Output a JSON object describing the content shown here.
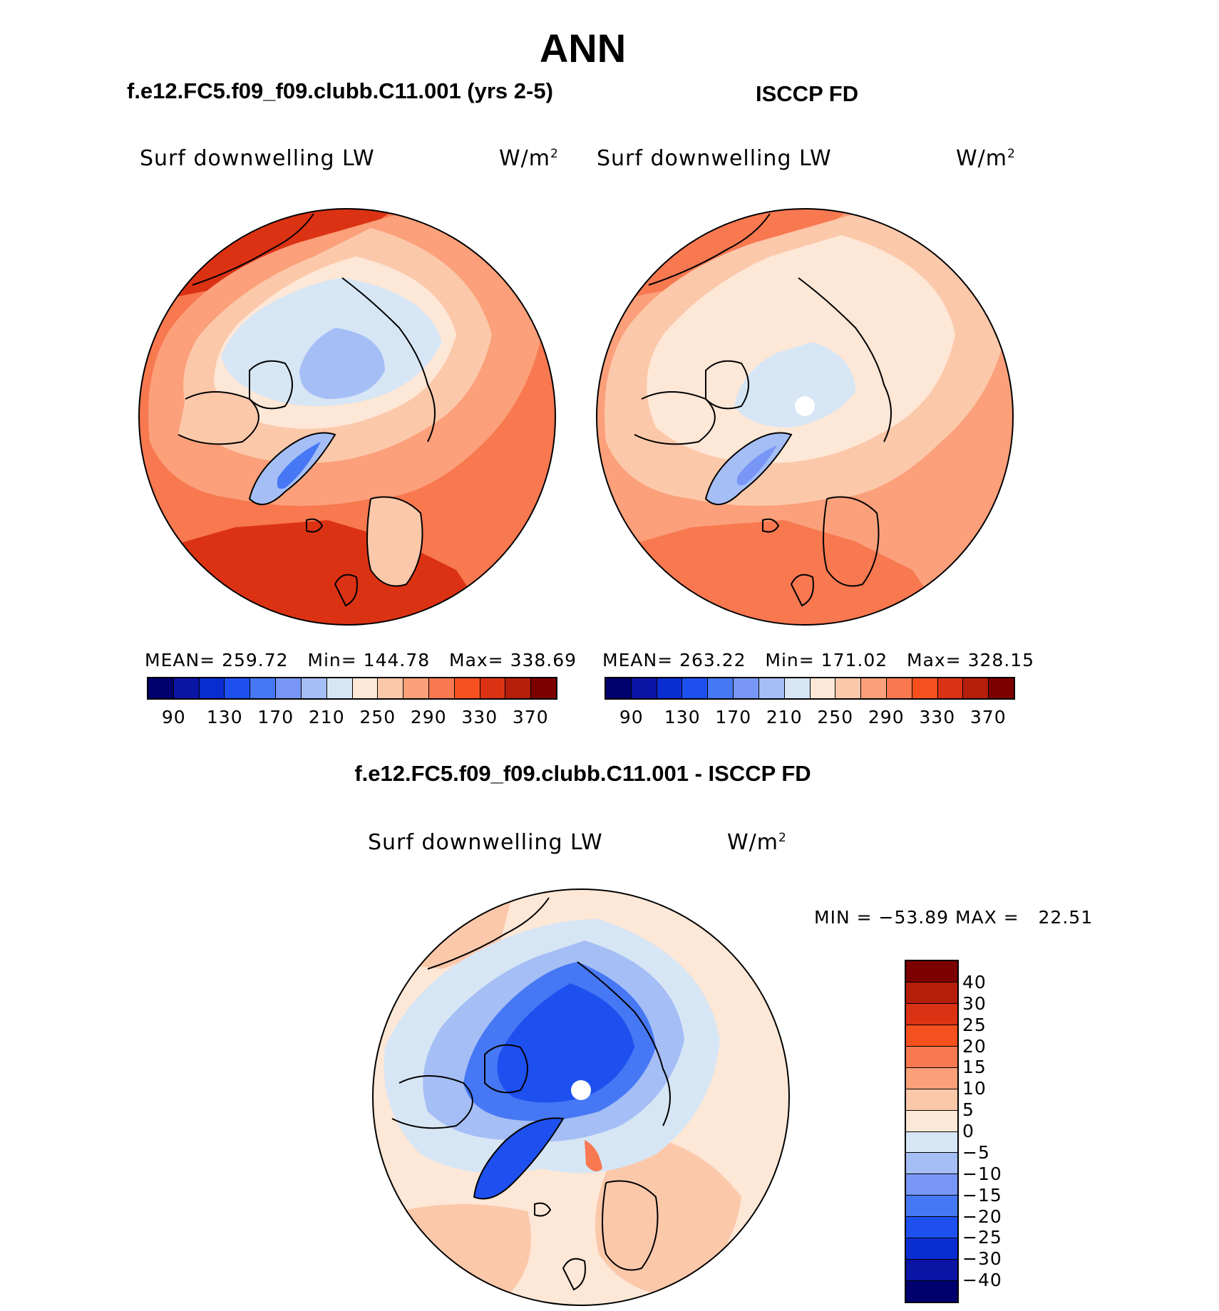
{
  "title": "ANN",
  "left_panel": {
    "case": "f.e12.FC5.f09_f09.clubb.C11.001 (yrs 2-5)",
    "variable": "Surf downwelling LW",
    "units": "W/m",
    "units_sup": "2",
    "mean_label": "MEAN=",
    "mean": "259.72",
    "min_label": "Min=",
    "min": "144.78",
    "max_label": "Max=",
    "max": "338.69"
  },
  "right_panel": {
    "case": "ISCCP FD",
    "variable": "Surf downwelling LW",
    "units": "W/m",
    "units_sup": "2",
    "mean_label": "MEAN=",
    "mean": "263.22",
    "min_label": "Min=",
    "min": "171.02",
    "max_label": "Max=",
    "max": "328.15"
  },
  "abs_colorbar": {
    "labels": [
      "90",
      "130",
      "170",
      "210",
      "250",
      "290",
      "330",
      "370"
    ],
    "colors": [
      "#00006e",
      "#0a14a5",
      "#0a2dd2",
      "#1e50f0",
      "#4678f5",
      "#7896f5",
      "#a5bef5",
      "#d7e6f5",
      "#fde7d6",
      "#fcc8aa",
      "#fba07a",
      "#f87850",
      "#f5501e",
      "#dc3214",
      "#b41e0a",
      "#7d0000"
    ]
  },
  "diff_panel": {
    "title": "f.e12.FC5.f09_f09.clubb.C11.001 - ISCCP FD",
    "variable": "Surf downwelling LW",
    "units": "W/m",
    "units_sup": "2",
    "min_label": "MIN =",
    "min": "−53.89",
    "max_label": "MAX =",
    "max": "22.51"
  },
  "diff_colorbar": {
    "labels": [
      "40",
      "30",
      "25",
      "20",
      "15",
      "10",
      "5",
      "0",
      "−5",
      "−10",
      "−15",
      "−20",
      "−25",
      "−30",
      "−40"
    ],
    "colors": [
      "#7d0000",
      "#b41e0a",
      "#dc3214",
      "#f5501e",
      "#f87850",
      "#fba07a",
      "#fcc8aa",
      "#fde7d6",
      "#d7e6f5",
      "#a5bef5",
      "#7896f5",
      "#4678f5",
      "#1e50f0",
      "#0a2dd2",
      "#0a14a5",
      "#00006e"
    ]
  },
  "colors": {
    "ocean_warm": "#f87850",
    "ocean_mid": "#fba07a",
    "land_light": "#fcc8aa",
    "neutral_warm": "#fde7d6",
    "neutral_cool": "#d7e6f5",
    "ice": "#a5bef5",
    "greenland": "#4678f5",
    "deep": "#1e50f0",
    "tropic": "#dc3214"
  }
}
